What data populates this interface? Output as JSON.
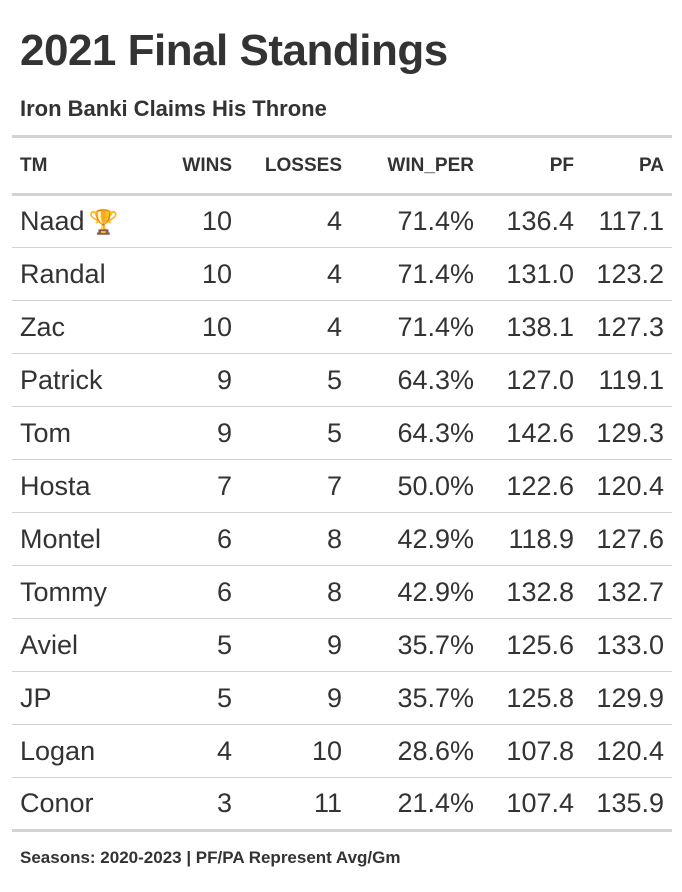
{
  "title": "2021 Final Standings",
  "subtitle": "Iron Banki Claims His Throne",
  "columns": [
    "TM",
    "WINS",
    "LOSSES",
    "WIN_PER",
    "PF",
    "PA"
  ],
  "rows": [
    {
      "tm": "Naad",
      "trophy": "🏆",
      "wins": "10",
      "losses": "4",
      "win_per": "71.4%",
      "pf": "136.4",
      "pa": "117.1"
    },
    {
      "tm": "Randal",
      "wins": "10",
      "losses": "4",
      "win_per": "71.4%",
      "pf": "131.0",
      "pa": "123.2"
    },
    {
      "tm": "Zac",
      "wins": "10",
      "losses": "4",
      "win_per": "71.4%",
      "pf": "138.1",
      "pa": "127.3"
    },
    {
      "tm": "Patrick",
      "wins": "9",
      "losses": "5",
      "win_per": "64.3%",
      "pf": "127.0",
      "pa": "119.1"
    },
    {
      "tm": "Tom",
      "wins": "9",
      "losses": "5",
      "win_per": "64.3%",
      "pf": "142.6",
      "pa": "129.3"
    },
    {
      "tm": "Hosta",
      "wins": "7",
      "losses": "7",
      "win_per": "50.0%",
      "pf": "122.6",
      "pa": "120.4"
    },
    {
      "tm": "Montel",
      "wins": "6",
      "losses": "8",
      "win_per": "42.9%",
      "pf": "118.9",
      "pa": "127.6"
    },
    {
      "tm": "Tommy",
      "wins": "6",
      "losses": "8",
      "win_per": "42.9%",
      "pf": "132.8",
      "pa": "132.7"
    },
    {
      "tm": "Aviel",
      "wins": "5",
      "losses": "9",
      "win_per": "35.7%",
      "pf": "125.6",
      "pa": "133.0"
    },
    {
      "tm": "JP",
      "wins": "5",
      "losses": "9",
      "win_per": "35.7%",
      "pf": "125.8",
      "pa": "129.9"
    },
    {
      "tm": "Logan",
      "wins": "4",
      "losses": "10",
      "win_per": "28.6%",
      "pf": "107.8",
      "pa": "120.4"
    },
    {
      "tm": "Conor",
      "wins": "3",
      "losses": "11",
      "win_per": "21.4%",
      "pf": "107.4",
      "pa": "135.9"
    }
  ],
  "footnote": "Seasons: 2020-2023 | PF/PA Represent Avg/Gm"
}
